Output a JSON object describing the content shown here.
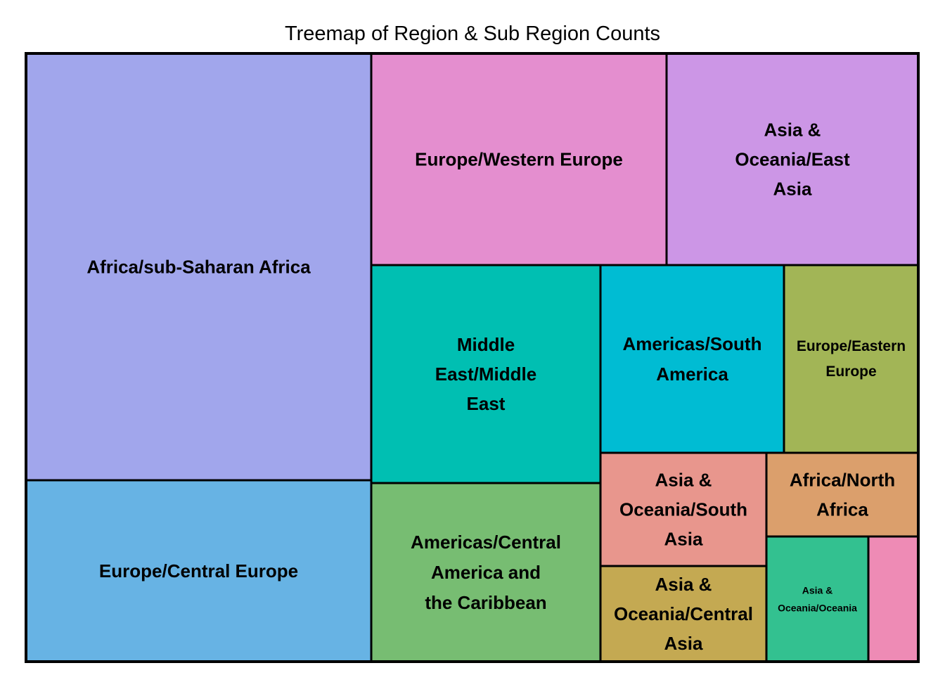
{
  "chart_data": {
    "type": "treemap",
    "title": "Treemap of Region & Sub Region Counts",
    "tiles": [
      {
        "label": "Africa/sub-Saharan Africa",
        "lines": [
          "Africa/sub-Saharan Africa"
        ],
        "value": 48,
        "color": "#A1A6EC"
      },
      {
        "label": "Europe/Central Europe",
        "lines": [
          "Europe/Central Europe"
        ],
        "value": 21,
        "color": "#67B3E4"
      },
      {
        "label": "Europe/Western Europe",
        "lines": [
          "Europe/Western Europe"
        ],
        "value": 20,
        "color": "#E48ECF"
      },
      {
        "label": "Asia & Oceania/East Asia",
        "lines": [
          "Asia &",
          "Oceania/East",
          "Asia"
        ],
        "value": 17,
        "color": "#CC96E6"
      },
      {
        "label": "Middle East/Middle East",
        "lines": [
          "Middle",
          "East/Middle",
          "East"
        ],
        "value": 16,
        "color": "#00BFB2"
      },
      {
        "label": "Americas/Central America and the Caribbean",
        "lines": [
          "Americas/Central",
          "America and",
          "the Caribbean"
        ],
        "value": 13,
        "color": "#77BD72"
      },
      {
        "label": "Americas/South America",
        "lines": [
          "Americas/South",
          "America"
        ],
        "value": 11,
        "color": "#00BCD3"
      },
      {
        "label": "Europe/Eastern Europe",
        "lines": [
          "Europe/Eastern",
          "Europe"
        ],
        "value": 8,
        "color": "#A2B556"
      },
      {
        "label": "Asia & Oceania/South Asia",
        "lines": [
          "Asia &",
          "Oceania/South",
          "Asia"
        ],
        "value": 6,
        "color": "#E8968D"
      },
      {
        "label": "Asia & Oceania/Central Asia",
        "lines": [
          "Asia &",
          "Oceania/Central",
          "Asia"
        ],
        "value": 5,
        "color": "#C4A952"
      },
      {
        "label": "Africa/North Africa",
        "lines": [
          "Africa/North",
          "Africa"
        ],
        "value": 4,
        "color": "#DB9F6C"
      },
      {
        "label": "Asia & Oceania/Oceania",
        "lines": [
          "Asia &",
          "Oceania/Oceania"
        ],
        "value": 4,
        "color": "#33C190"
      },
      {
        "label": "",
        "lines": [],
        "value": 1.7,
        "color": "#EE8BB5"
      }
    ]
  }
}
